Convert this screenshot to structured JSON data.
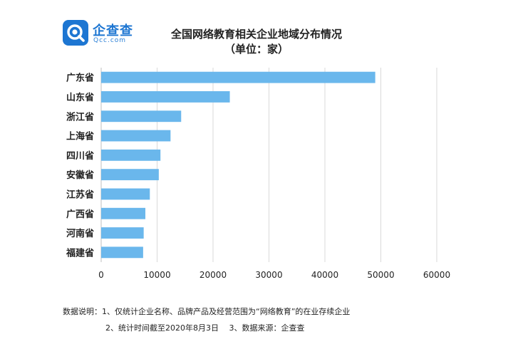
{
  "logo": {
    "name_cn": "企查查",
    "name_en": "Qcc.com"
  },
  "colors": {
    "bar": "#6ab7ec",
    "grid": "#d9d9d9",
    "brand": "#1d76d2"
  },
  "chart_data": {
    "type": "bar",
    "orientation": "horizontal",
    "title": "全国网络教育相关企业地域分布情况",
    "subtitle": "（单位：家）",
    "categories": [
      "广东省",
      "山东省",
      "浙江省",
      "上海省",
      "四川省",
      "安徽省",
      "江苏省",
      "广西省",
      "河南省",
      "福建省"
    ],
    "values": [
      49000,
      23000,
      14300,
      12400,
      10600,
      10300,
      8700,
      7900,
      7600,
      7500
    ],
    "xlim": [
      0,
      60000
    ],
    "xticks": [
      "0",
      "10000",
      "20000",
      "30000",
      "40000",
      "50000",
      "60000"
    ],
    "xlabel": "",
    "ylabel": "",
    "grid": "vertical",
    "legend": "none"
  },
  "notes": {
    "line1": "数据说明：1、仅统计企业名称、品牌产品及经营范围为“网络教育”的在业存续企业",
    "line2": "2、统计时间截至2020年8月3日　 3、数据来源：企查查"
  }
}
